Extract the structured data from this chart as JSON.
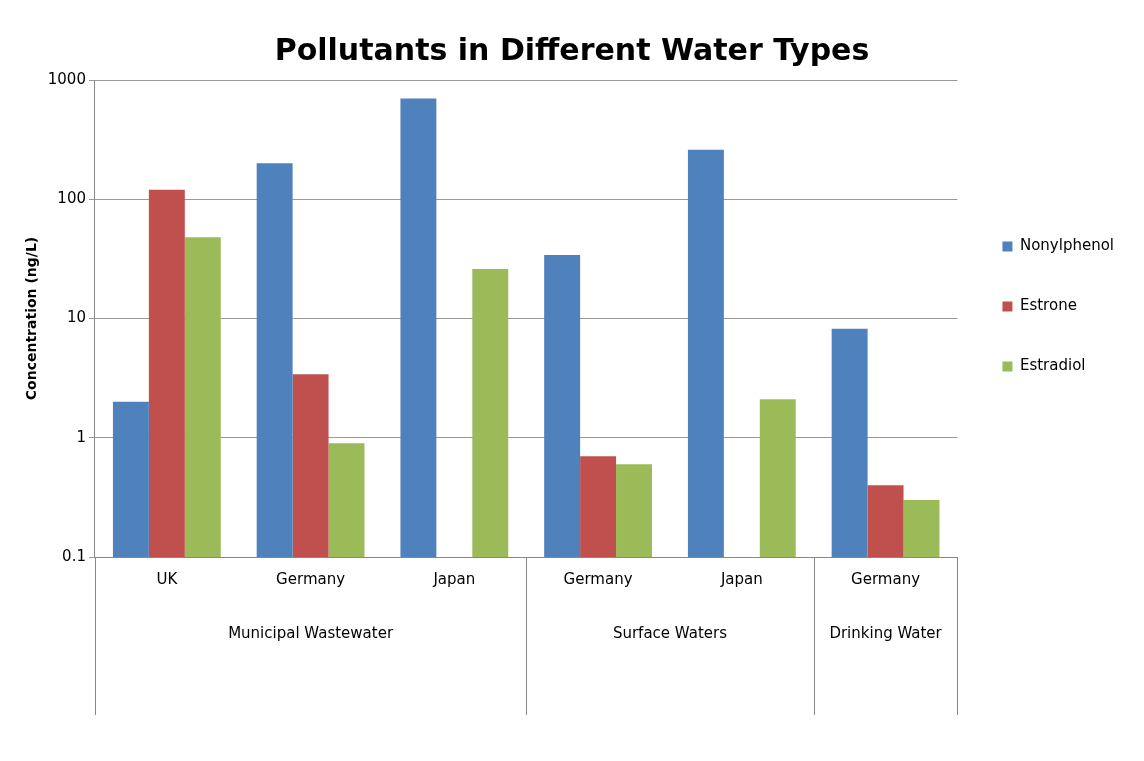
{
  "chart_data": {
    "type": "bar",
    "title": "Pollutants in Different Water Types",
    "ylabel": "Concentration (ng/L)",
    "categories": [
      "UK",
      "Germany",
      "Japan",
      "Germany",
      "Japan",
      "Germany"
    ],
    "series": [
      {
        "name": "Nonylphenol",
        "color": "#4f81bd",
        "values": [
          2,
          200,
          700,
          34,
          260,
          8.2
        ]
      },
      {
        "name": "Estrone",
        "color": "#c0504d",
        "values": [
          120,
          3.4,
          null,
          0.7,
          null,
          0.4
        ]
      },
      {
        "name": "Estradiol",
        "color": "#9bbb59",
        "values": [
          48,
          0.9,
          26,
          0.6,
          2.1,
          0.3
        ]
      }
    ],
    "annotations": [
      "Municipal Wastewater",
      "Surface Waters",
      "Drinking Water"
    ],
    "ylim": [
      0.1,
      1000
    ],
    "yticks": [
      0.1,
      1,
      10,
      100,
      1000
    ],
    "log": true,
    "grid": "y",
    "legend": "right"
  }
}
